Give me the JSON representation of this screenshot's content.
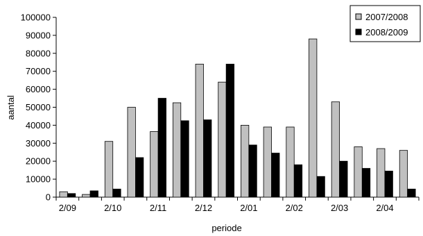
{
  "chart_data": {
    "type": "bar",
    "xlabel": "periode",
    "ylabel": "aantal",
    "ylim": [
      0,
      100000
    ],
    "yticks": [
      0,
      10000,
      20000,
      30000,
      40000,
      50000,
      60000,
      70000,
      80000,
      90000,
      100000
    ],
    "x_tick_labels": [
      "2/09",
      "2/10",
      "2/11",
      "2/12",
      "2/01",
      "2/02",
      "2/03",
      "2/04"
    ],
    "x_tick_label_every": 2,
    "grid": false,
    "legend_position": "top-right",
    "series": [
      {
        "name": "2007/2008",
        "color": "#c0c0c0",
        "values": [
          3000,
          1500,
          31000,
          50000,
          36500,
          52500,
          74000,
          64000,
          40000,
          39000,
          39000,
          88000,
          53000,
          28000,
          27000,
          26000
        ]
      },
      {
        "name": "2008/2009",
        "color": "#000000",
        "values": [
          2000,
          3500,
          4500,
          22000,
          55000,
          42500,
          43000,
          74000,
          29000,
          24500,
          18000,
          11500,
          20000,
          16000,
          14500,
          4500
        ]
      }
    ]
  }
}
